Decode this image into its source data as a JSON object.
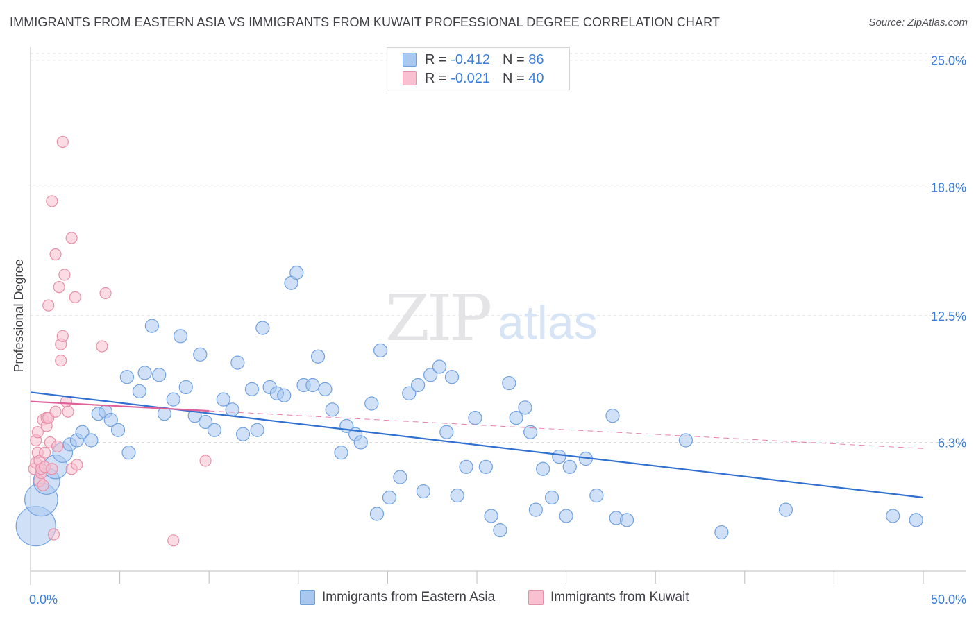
{
  "title": "IMMIGRANTS FROM EASTERN ASIA VS IMMIGRANTS FROM KUWAIT PROFESSIONAL DEGREE CORRELATION CHART",
  "source": "Source: ZipAtlas.com",
  "watermark": {
    "zip": "ZIP",
    "atlas": "atlas"
  },
  "legend": {
    "rows": [
      {
        "r_label": "R =",
        "r_value": "-0.412",
        "n_label": "N =",
        "n_value": "86",
        "color": "#a9c8f0",
        "border": "#6fa0e0"
      },
      {
        "r_label": "R =",
        "r_value": "-0.021",
        "n_label": "N =",
        "n_value": "40",
        "color": "#f8c0d0",
        "border": "#e890a8"
      }
    ]
  },
  "chart_data": {
    "type": "scatter",
    "title": "IMMIGRANTS FROM EASTERN ASIA VS IMMIGRANTS FROM KUWAIT PROFESSIONAL DEGREE CORRELATION CHART",
    "xlabel": "",
    "ylabel": "Professional Degree",
    "xlim": [
      0,
      50
    ],
    "ylim": [
      0,
      25.5
    ],
    "x_tick_labels": [
      "0.0%",
      "50.0%"
    ],
    "y_ticks": [
      6.3,
      12.5,
      18.8,
      25.0
    ],
    "y_tick_labels": [
      "6.3%",
      "12.5%",
      "18.8%",
      "25.0%"
    ],
    "grid": true,
    "legend_placement": "bottom-center",
    "series": [
      {
        "name": "Immigrants from Eastern Asia",
        "color": "#a9c8f0",
        "edge_color": "#6fa0e0",
        "trend_color": "#3070d0",
        "trend": {
          "x": [
            0,
            50
          ],
          "y": [
            8.75,
            3.6
          ]
        },
        "points": [
          {
            "x": 0.3,
            "y": 2.2,
            "s": 3
          },
          {
            "x": 0.6,
            "y": 3.5,
            "s": 2.5
          },
          {
            "x": 0.9,
            "y": 4.4,
            "s": 2
          },
          {
            "x": 1.4,
            "y": 5.1,
            "s": 1.8
          },
          {
            "x": 1.8,
            "y": 5.8,
            "s": 1.5
          },
          {
            "x": 2.2,
            "y": 6.2,
            "s": 1
          },
          {
            "x": 2.6,
            "y": 6.4,
            "s": 1
          },
          {
            "x": 2.9,
            "y": 6.8,
            "s": 1
          },
          {
            "x": 3.4,
            "y": 6.4,
            "s": 1
          },
          {
            "x": 3.8,
            "y": 7.7,
            "s": 1
          },
          {
            "x": 4.2,
            "y": 7.8,
            "s": 1
          },
          {
            "x": 4.5,
            "y": 7.4,
            "s": 1
          },
          {
            "x": 4.9,
            "y": 6.9,
            "s": 1
          },
          {
            "x": 5.4,
            "y": 9.5,
            "s": 1
          },
          {
            "x": 5.5,
            "y": 5.8,
            "s": 1
          },
          {
            "x": 6.1,
            "y": 8.8,
            "s": 1
          },
          {
            "x": 6.4,
            "y": 9.7,
            "s": 1
          },
          {
            "x": 6.8,
            "y": 12.0,
            "s": 1
          },
          {
            "x": 7.2,
            "y": 9.6,
            "s": 1
          },
          {
            "x": 7.5,
            "y": 7.7,
            "s": 1
          },
          {
            "x": 8.0,
            "y": 8.4,
            "s": 1
          },
          {
            "x": 8.4,
            "y": 11.5,
            "s": 1
          },
          {
            "x": 8.7,
            "y": 9.0,
            "s": 1
          },
          {
            "x": 9.2,
            "y": 7.6,
            "s": 1
          },
          {
            "x": 9.5,
            "y": 10.6,
            "s": 1
          },
          {
            "x": 9.8,
            "y": 7.3,
            "s": 1
          },
          {
            "x": 10.3,
            "y": 6.9,
            "s": 1
          },
          {
            "x": 10.8,
            "y": 8.4,
            "s": 1
          },
          {
            "x": 11.3,
            "y": 7.9,
            "s": 1
          },
          {
            "x": 11.6,
            "y": 10.2,
            "s": 1
          },
          {
            "x": 11.9,
            "y": 6.7,
            "s": 1
          },
          {
            "x": 12.4,
            "y": 8.9,
            "s": 1
          },
          {
            "x": 12.7,
            "y": 6.9,
            "s": 1
          },
          {
            "x": 13.0,
            "y": 11.9,
            "s": 1
          },
          {
            "x": 13.4,
            "y": 9.0,
            "s": 1
          },
          {
            "x": 13.8,
            "y": 8.7,
            "s": 1
          },
          {
            "x": 14.2,
            "y": 8.6,
            "s": 1
          },
          {
            "x": 14.6,
            "y": 14.1,
            "s": 1
          },
          {
            "x": 14.9,
            "y": 14.6,
            "s": 1
          },
          {
            "x": 15.3,
            "y": 9.1,
            "s": 1
          },
          {
            "x": 15.8,
            "y": 9.1,
            "s": 1
          },
          {
            "x": 16.1,
            "y": 10.5,
            "s": 1
          },
          {
            "x": 16.5,
            "y": 8.9,
            "s": 1
          },
          {
            "x": 16.9,
            "y": 7.9,
            "s": 1
          },
          {
            "x": 17.4,
            "y": 5.8,
            "s": 1
          },
          {
            "x": 17.7,
            "y": 7.1,
            "s": 1
          },
          {
            "x": 18.2,
            "y": 6.7,
            "s": 1
          },
          {
            "x": 18.5,
            "y": 6.3,
            "s": 1
          },
          {
            "x": 19.1,
            "y": 8.2,
            "s": 1
          },
          {
            "x": 19.4,
            "y": 2.8,
            "s": 1
          },
          {
            "x": 19.6,
            "y": 10.8,
            "s": 1
          },
          {
            "x": 20.1,
            "y": 3.6,
            "s": 1
          },
          {
            "x": 20.7,
            "y": 4.6,
            "s": 1
          },
          {
            "x": 21.2,
            "y": 8.7,
            "s": 1
          },
          {
            "x": 21.7,
            "y": 9.1,
            "s": 1
          },
          {
            "x": 22.0,
            "y": 3.9,
            "s": 1
          },
          {
            "x": 22.4,
            "y": 9.6,
            "s": 1
          },
          {
            "x": 22.9,
            "y": 10.0,
            "s": 1
          },
          {
            "x": 23.3,
            "y": 6.8,
            "s": 1
          },
          {
            "x": 23.6,
            "y": 9.5,
            "s": 1
          },
          {
            "x": 23.9,
            "y": 3.7,
            "s": 1
          },
          {
            "x": 24.4,
            "y": 5.1,
            "s": 1
          },
          {
            "x": 24.9,
            "y": 7.5,
            "s": 1
          },
          {
            "x": 25.5,
            "y": 5.1,
            "s": 1
          },
          {
            "x": 25.8,
            "y": 2.7,
            "s": 1
          },
          {
            "x": 26.3,
            "y": 2.0,
            "s": 1
          },
          {
            "x": 26.8,
            "y": 9.2,
            "s": 1
          },
          {
            "x": 27.2,
            "y": 7.5,
            "s": 1
          },
          {
            "x": 27.7,
            "y": 8.0,
            "s": 1
          },
          {
            "x": 28.0,
            "y": 6.8,
            "s": 1
          },
          {
            "x": 28.3,
            "y": 3.0,
            "s": 1
          },
          {
            "x": 28.7,
            "y": 5.0,
            "s": 1
          },
          {
            "x": 29.2,
            "y": 3.6,
            "s": 1
          },
          {
            "x": 29.6,
            "y": 5.6,
            "s": 1
          },
          {
            "x": 30.0,
            "y": 2.7,
            "s": 1
          },
          {
            "x": 30.2,
            "y": 5.1,
            "s": 1
          },
          {
            "x": 31.1,
            "y": 5.5,
            "s": 1
          },
          {
            "x": 31.7,
            "y": 3.7,
            "s": 1
          },
          {
            "x": 32.6,
            "y": 7.6,
            "s": 1
          },
          {
            "x": 32.8,
            "y": 2.6,
            "s": 1
          },
          {
            "x": 33.4,
            "y": 2.5,
            "s": 1
          },
          {
            "x": 36.7,
            "y": 6.4,
            "s": 1
          },
          {
            "x": 38.7,
            "y": 1.9,
            "s": 1
          },
          {
            "x": 42.3,
            "y": 3.0,
            "s": 1
          },
          {
            "x": 48.3,
            "y": 2.7,
            "s": 1
          },
          {
            "x": 49.6,
            "y": 2.5,
            "s": 1
          }
        ]
      },
      {
        "name": "Immigrants from Kuwait",
        "color": "#f8c0d0",
        "edge_color": "#e890a8",
        "trend_color": "#e0609a",
        "trend": {
          "x": [
            0,
            50
          ],
          "y": [
            8.3,
            6.0
          ]
        },
        "trend_solid_until": 10,
        "points": [
          {
            "x": 0.2,
            "y": 5.0
          },
          {
            "x": 0.3,
            "y": 5.3
          },
          {
            "x": 0.3,
            "y": 6.4
          },
          {
            "x": 0.4,
            "y": 6.8
          },
          {
            "x": 0.4,
            "y": 5.8
          },
          {
            "x": 0.5,
            "y": 4.4
          },
          {
            "x": 0.5,
            "y": 5.4
          },
          {
            "x": 0.6,
            "y": 4.8
          },
          {
            "x": 0.6,
            "y": 5.0
          },
          {
            "x": 0.7,
            "y": 7.4
          },
          {
            "x": 0.7,
            "y": 4.2
          },
          {
            "x": 0.8,
            "y": 5.8
          },
          {
            "x": 0.8,
            "y": 5.1
          },
          {
            "x": 0.9,
            "y": 7.1
          },
          {
            "x": 0.9,
            "y": 7.5
          },
          {
            "x": 1.0,
            "y": 13.0
          },
          {
            "x": 1.0,
            "y": 7.5
          },
          {
            "x": 1.1,
            "y": 6.3
          },
          {
            "x": 1.2,
            "y": 5.0
          },
          {
            "x": 1.2,
            "y": 18.1
          },
          {
            "x": 1.3,
            "y": 1.8
          },
          {
            "x": 1.4,
            "y": 15.5
          },
          {
            "x": 1.4,
            "y": 7.8
          },
          {
            "x": 1.5,
            "y": 6.1
          },
          {
            "x": 1.6,
            "y": 13.9
          },
          {
            "x": 1.7,
            "y": 11.1
          },
          {
            "x": 1.7,
            "y": 10.3
          },
          {
            "x": 1.8,
            "y": 21.0
          },
          {
            "x": 1.8,
            "y": 11.5
          },
          {
            "x": 1.9,
            "y": 14.5
          },
          {
            "x": 2.0,
            "y": 8.3
          },
          {
            "x": 2.1,
            "y": 7.8
          },
          {
            "x": 2.3,
            "y": 16.3
          },
          {
            "x": 2.3,
            "y": 5.0
          },
          {
            "x": 2.5,
            "y": 13.4
          },
          {
            "x": 2.6,
            "y": 5.2
          },
          {
            "x": 4.0,
            "y": 11.0
          },
          {
            "x": 4.2,
            "y": 13.6
          },
          {
            "x": 8.0,
            "y": 1.5
          },
          {
            "x": 9.8,
            "y": 5.4
          }
        ]
      }
    ]
  }
}
